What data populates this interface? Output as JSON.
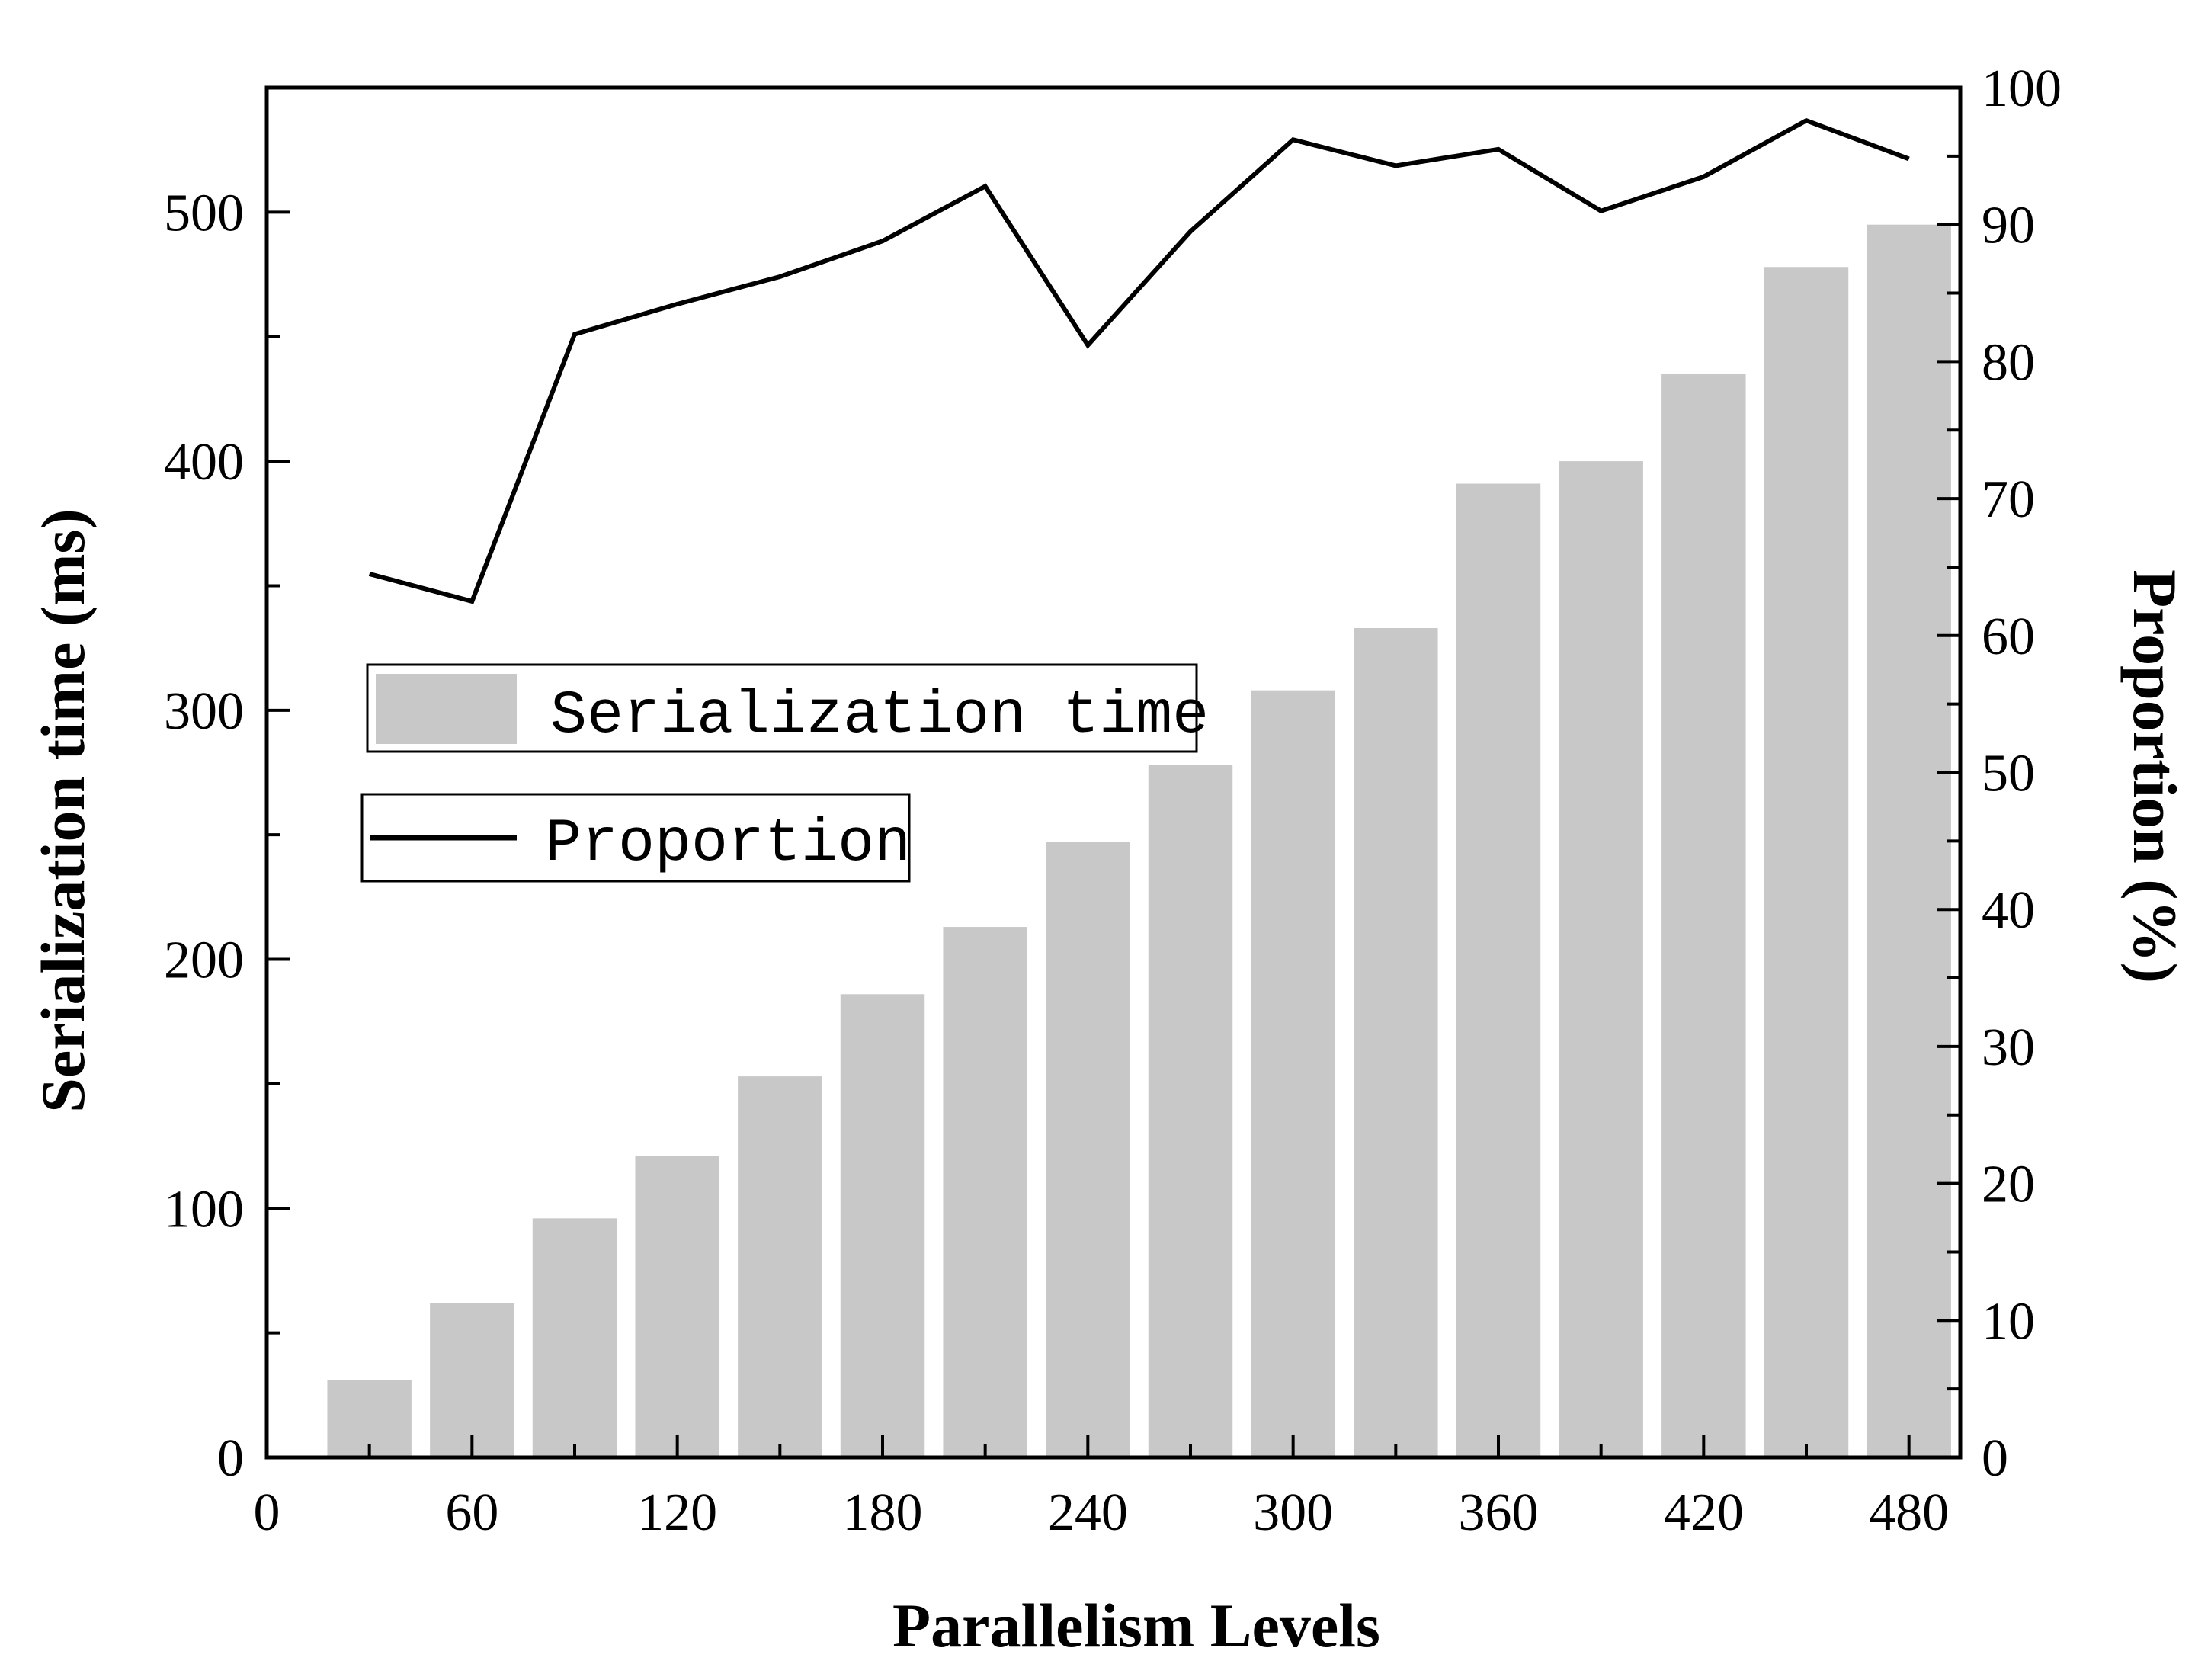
{
  "chart_data": {
    "type": "bar+line",
    "title": "",
    "xlabel": "Parallelism Levels",
    "ylabel_left": "Serialization time (ms)",
    "ylabel_right": "Proportion (%)",
    "x": [
      30,
      60,
      90,
      120,
      150,
      180,
      210,
      240,
      270,
      300,
      330,
      360,
      390,
      420,
      450,
      480
    ],
    "xlim": [
      0,
      495
    ],
    "xticks": [
      0,
      60,
      120,
      180,
      240,
      300,
      360,
      420,
      480
    ],
    "ylim_left": [
      0,
      550
    ],
    "yticks_left": [
      0,
      100,
      200,
      300,
      400,
      500
    ],
    "ylim_right": [
      0,
      100
    ],
    "yticks_right": [
      0,
      10,
      20,
      30,
      40,
      50,
      60,
      70,
      80,
      90,
      100
    ],
    "series": [
      {
        "name": "Serialization time",
        "type": "bar",
        "axis": "left",
        "color": "#c8c8c8",
        "values": [
          31,
          62,
          96,
          121,
          153,
          186,
          213,
          247,
          278,
          308,
          333,
          391,
          400,
          435,
          478,
          495
        ]
      },
      {
        "name": "Proportion",
        "type": "line",
        "axis": "right",
        "color": "#000000",
        "values": [
          64.5,
          62.5,
          82.0,
          84.2,
          86.2,
          88.8,
          92.8,
          81.2,
          89.5,
          96.2,
          94.3,
          95.5,
          91.0,
          93.5,
          97.6,
          94.8
        ]
      }
    ],
    "legend_position": "center-left",
    "grid": false
  }
}
